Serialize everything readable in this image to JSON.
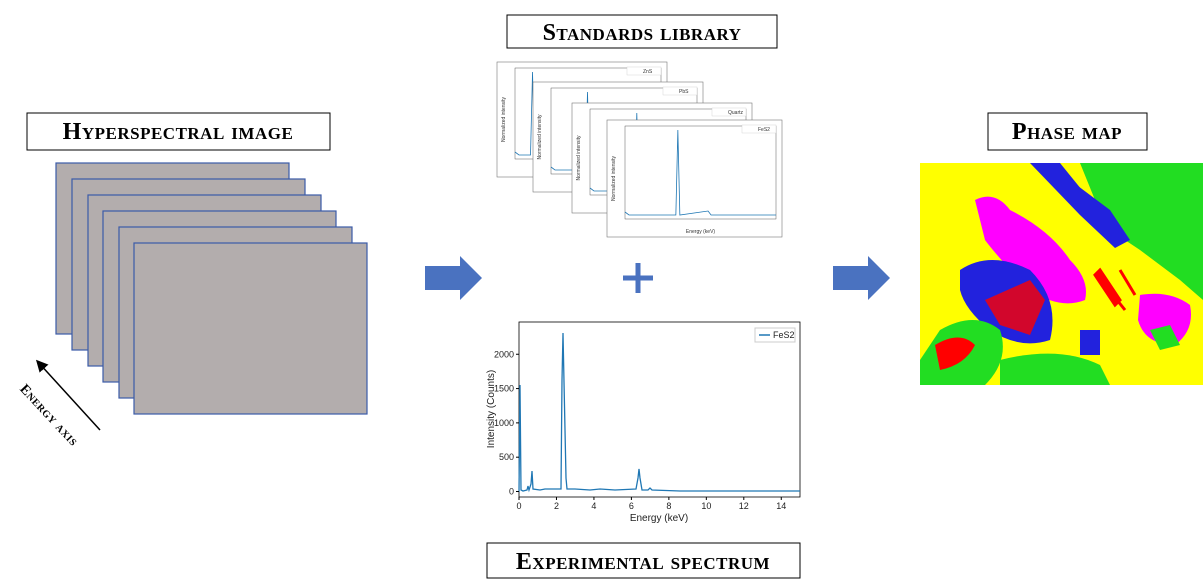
{
  "labels": {
    "hyperspectral": "Hyperspectral image",
    "standards": "Standards library",
    "phase_map": "Phase map",
    "experimental": "Experimental spectrum",
    "energy_axis": "Energy axis"
  },
  "standards_library": {
    "legends": [
      "ZnS",
      "PbS",
      "Quartz",
      "FeS2"
    ],
    "y_label": "Normalized intensity",
    "x_label": "Energy (keV)"
  },
  "experimental_chart": {
    "legend": "FeS2",
    "x_label": "Energy (keV)",
    "y_label": "Intensity (Counts)",
    "xlim": [
      0,
      15
    ],
    "ylim": [
      -80,
      2470
    ],
    "xticks": [
      0,
      2,
      4,
      6,
      8,
      10,
      12,
      14
    ],
    "yticks": [
      0,
      500,
      1000,
      1500,
      2000
    ]
  }
}
